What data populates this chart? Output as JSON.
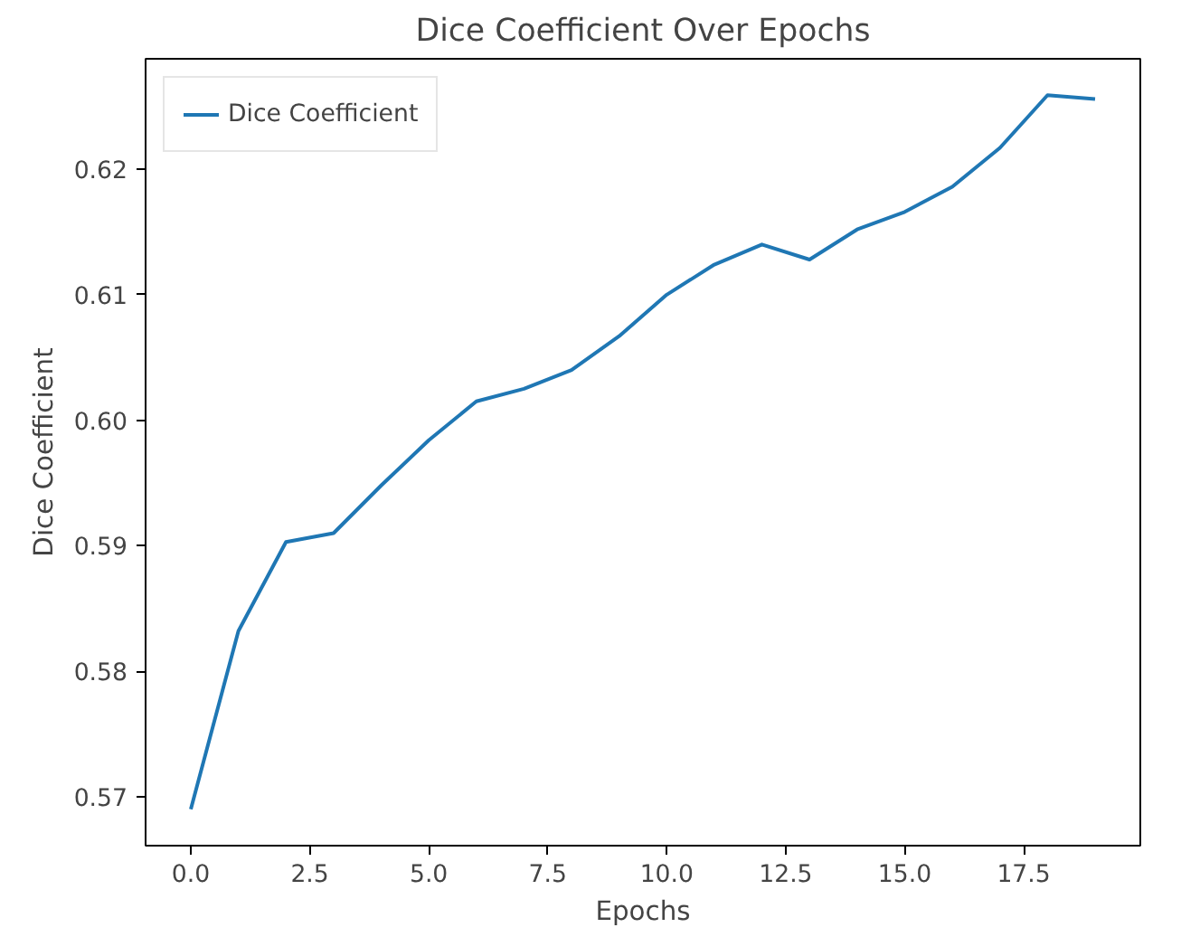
{
  "chart_data": {
    "type": "line",
    "title": "Dice Coefficient Over Epochs",
    "xlabel": "Epochs",
    "ylabel": "Dice Coefficient",
    "x": [
      0,
      1,
      2,
      3,
      4,
      5,
      6,
      7,
      8,
      9,
      10,
      11,
      12,
      13,
      14,
      15,
      16,
      17,
      18,
      19
    ],
    "series": [
      {
        "name": "Dice Coefficient",
        "color": "#1f77b4",
        "values": [
          0.569,
          0.5832,
          0.5903,
          0.591,
          0.5948,
          0.5984,
          0.6015,
          0.6025,
          0.604,
          0.6067,
          0.61,
          0.6124,
          0.614,
          0.6128,
          0.6152,
          0.6166,
          0.6186,
          0.6217,
          0.6259,
          0.6256
        ]
      }
    ],
    "xlim": [
      -0.95,
      19.95
    ],
    "ylim": [
      0.5661,
      0.6288
    ],
    "xticks": [
      {
        "value": 0,
        "label": "0.0"
      },
      {
        "value": 2.5,
        "label": "2.5"
      },
      {
        "value": 5,
        "label": "5.0"
      },
      {
        "value": 7.5,
        "label": "7.5"
      },
      {
        "value": 10,
        "label": "10.0"
      },
      {
        "value": 12.5,
        "label": "12.5"
      },
      {
        "value": 15,
        "label": "15.0"
      },
      {
        "value": 17.5,
        "label": "17.5"
      }
    ],
    "yticks": [
      0.57,
      0.58,
      0.59,
      {
        "value": 0.6,
        "label": "0.60"
      },
      0.61,
      0.62
    ],
    "legend": "top left",
    "grid": false
  }
}
